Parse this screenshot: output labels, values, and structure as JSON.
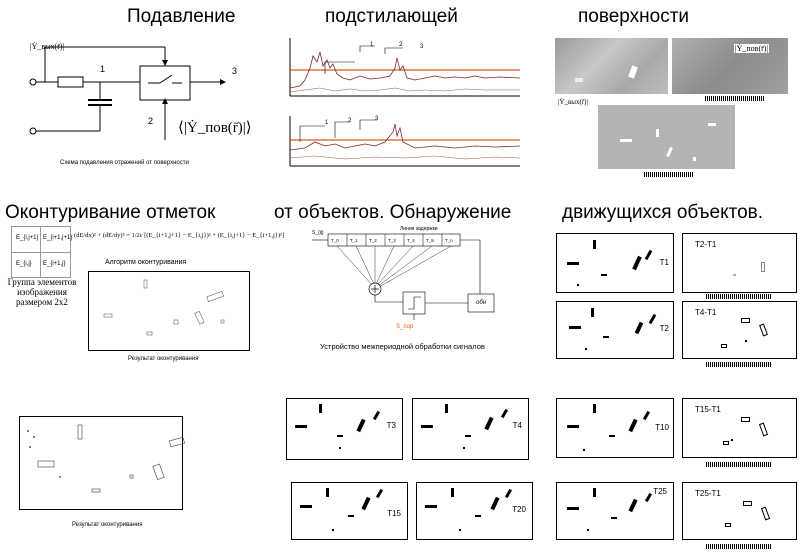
{
  "titles": {
    "row1": [
      "Подавление",
      "подстилающей",
      "поверхности"
    ],
    "row2": [
      "Оконтуривание  отметок",
      "от объектов. Обнаружение",
      "движущихся объектов."
    ]
  },
  "circuit": {
    "input_label": "|Ẏ_вых(r̄)|",
    "node1": "1",
    "node2": "2",
    "node3": "3",
    "surface_label": "⟨|Ẏ_пов(r̄)|⟩",
    "caption": "Схема подавления отражений от поверхности"
  },
  "signal_plot": {
    "markers_top": [
      "1",
      "2",
      "3"
    ],
    "markers_bottom": [
      "1",
      "2",
      "3"
    ]
  },
  "surface_images": {
    "label_right": "|Ẏ_пов(r̄)|",
    "label_bottom": "|Ẏ_вых(r̄)|"
  },
  "contour": {
    "cells": [
      "E_{i,j+1}",
      "E_{i+1,j+1}",
      "E_{i,j}",
      "E_{i+1,j}"
    ],
    "formula": "(dE/dx)² + (dE/dy)² = 1/2ε [(E_{i+1,j+1} − E_{i,j})² + (E_{i,j+1} − E_{i+1,j})²]",
    "algorithm_label": "Алгоритм оконтуривания",
    "group_label": "Группа элементов изображения размером 2х2",
    "result_caption_1": "Результат оконтуривания",
    "result_caption_2": "Результат оконтуривания"
  },
  "processor": {
    "delay_line_label": "Линия задержки",
    "taps": [
      "T_0",
      "T_1",
      "T_2",
      "T_3",
      "T_4",
      "T_5",
      "T_n"
    ],
    "input_label": "S_{ij}",
    "threshold_label": "S_пор",
    "output_label": "обн",
    "caption": "Устройство межпериодной обработки сигналов"
  },
  "frames": {
    "left_pairs": [
      "T1",
      "T2"
    ],
    "diff_pairs": [
      "T2-T1",
      "T4-T1"
    ],
    "mid_frames": [
      "T3",
      "T4",
      "T15",
      "T20"
    ],
    "right_frames": [
      "T10",
      "T25"
    ],
    "right_diffs": [
      "T15-T1",
      "T25-T1"
    ]
  }
}
